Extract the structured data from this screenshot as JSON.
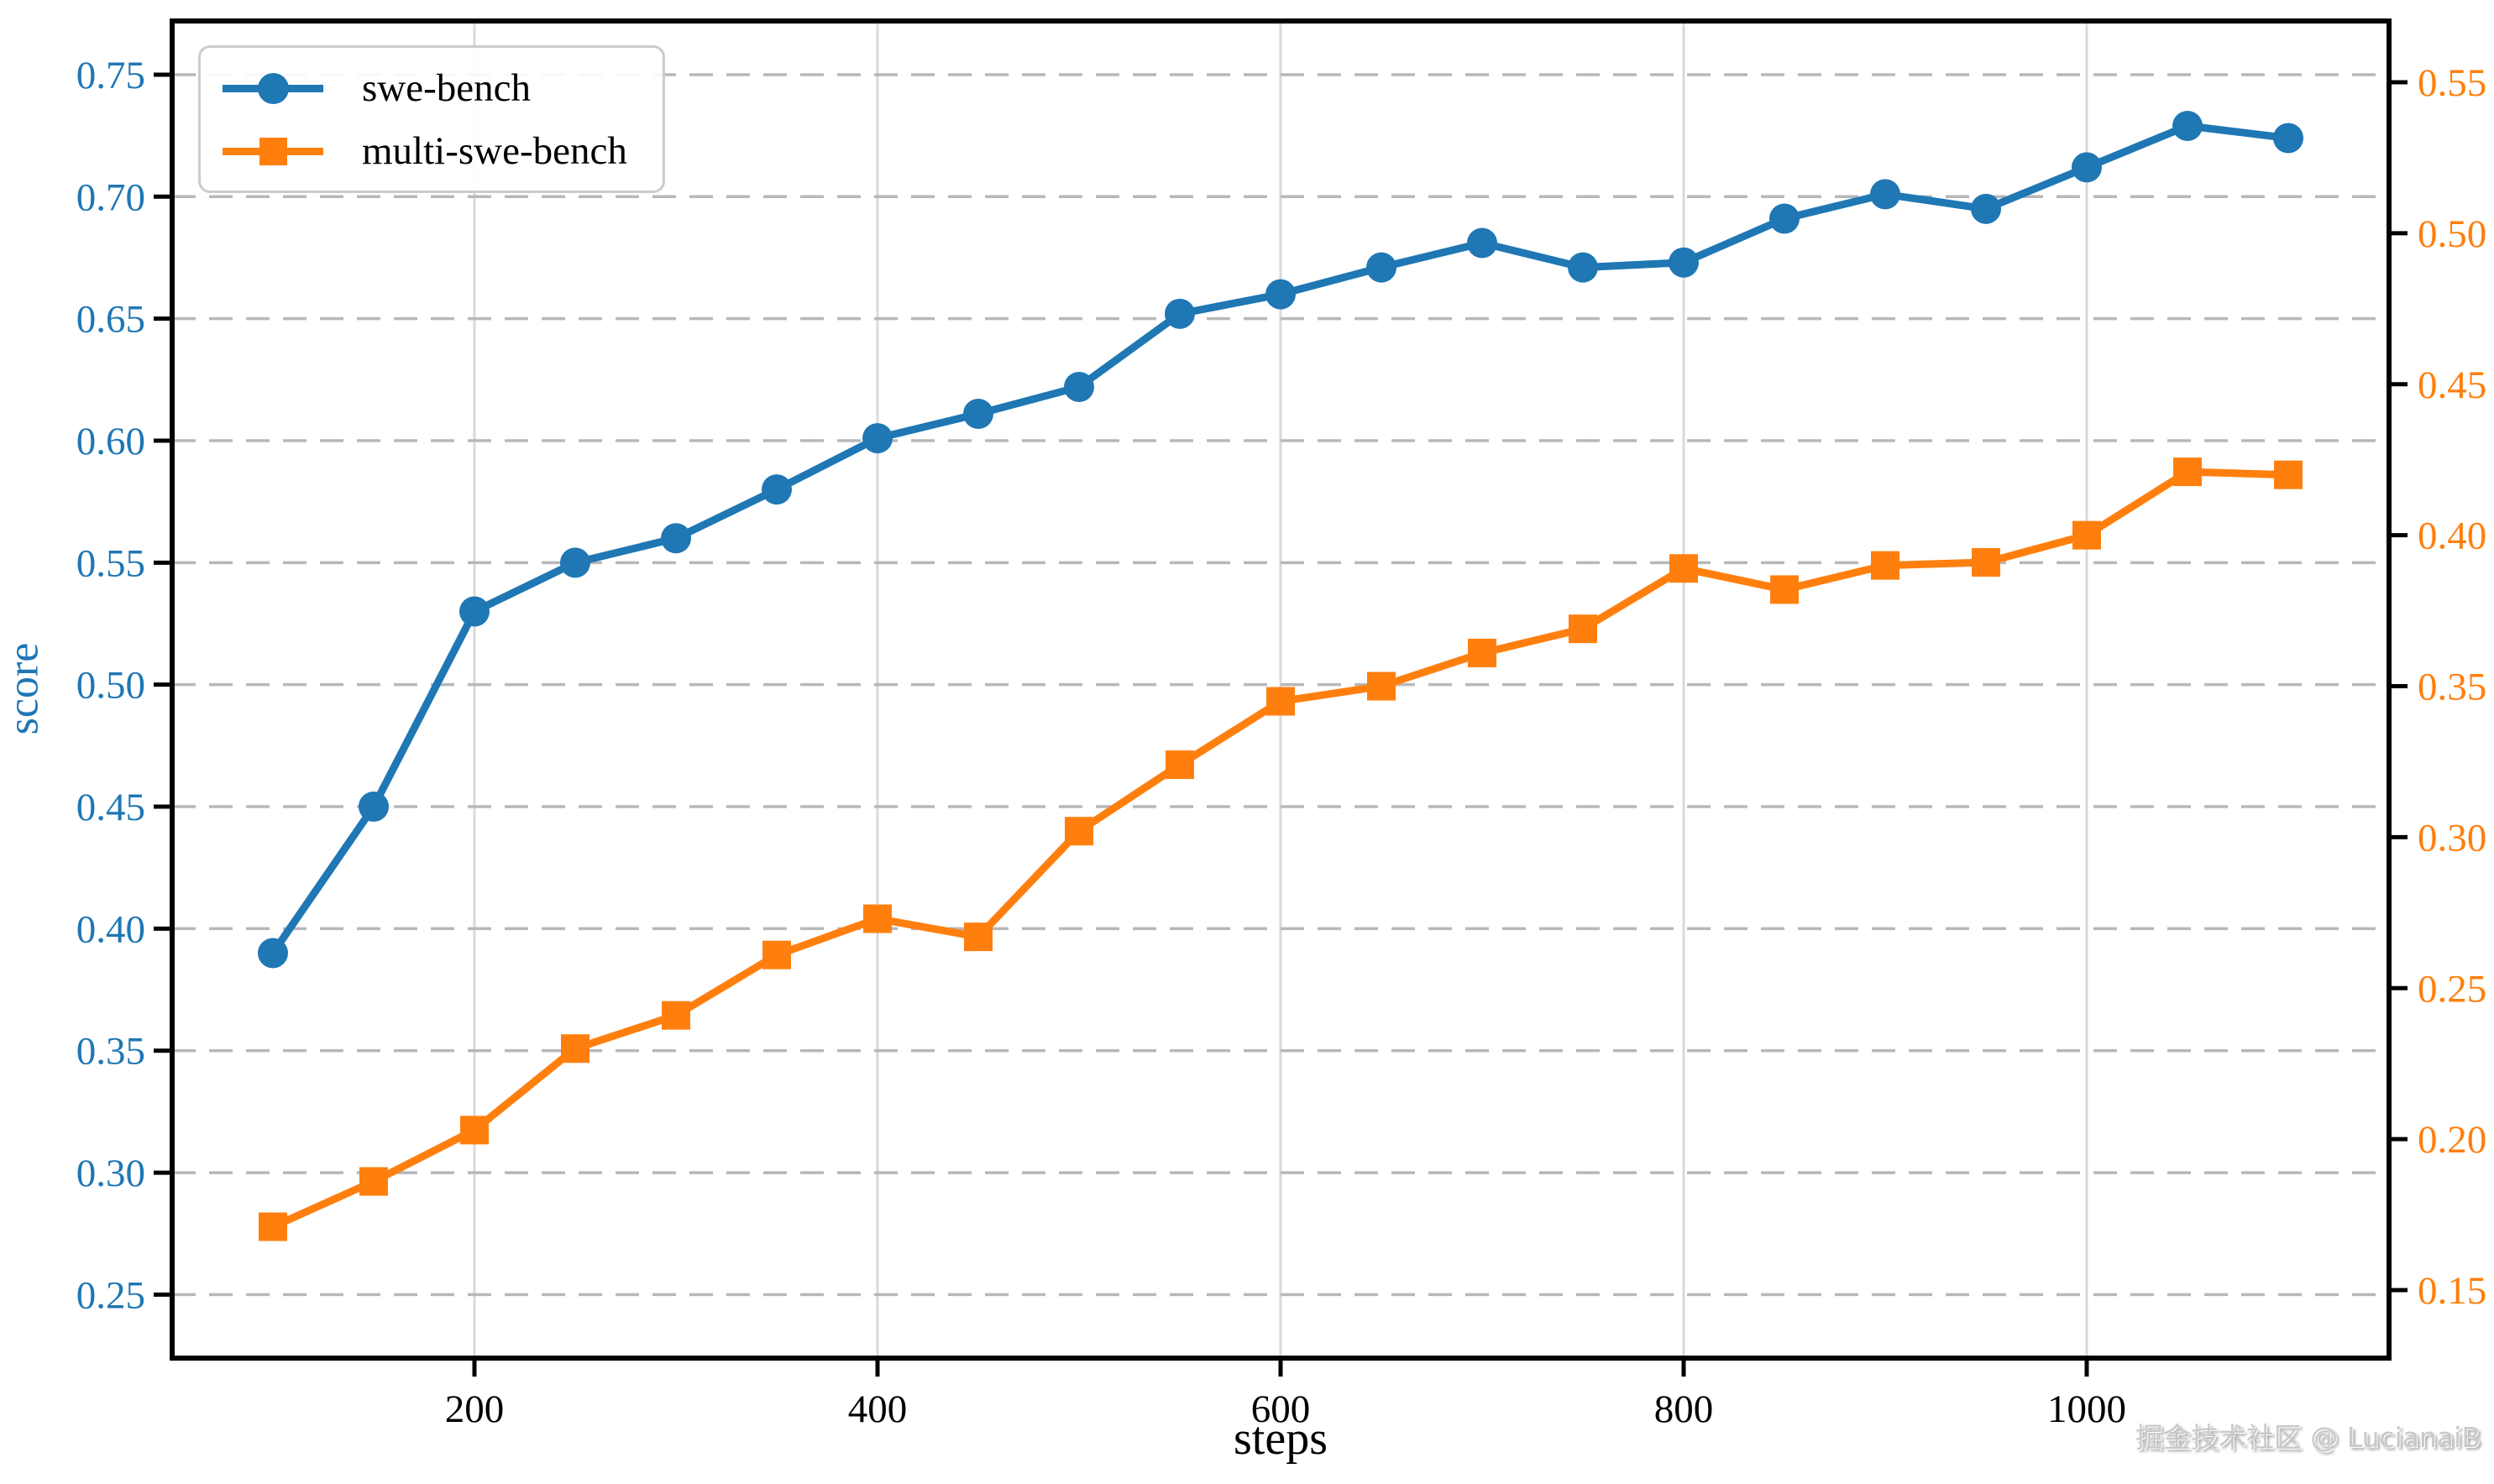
{
  "chart_data": {
    "type": "line",
    "title": "",
    "xlabel": "steps",
    "ylabel_left": "score",
    "x": [
      100,
      150,
      200,
      250,
      300,
      350,
      400,
      450,
      500,
      550,
      600,
      650,
      700,
      750,
      800,
      850,
      900,
      950,
      1000,
      1050,
      1100
    ],
    "series": [
      {
        "name": "swe-bench",
        "axis": "left",
        "color": "#1f77b4",
        "marker": "circle",
        "values": [
          0.39,
          0.45,
          0.53,
          0.55,
          0.56,
          0.58,
          0.601,
          0.611,
          0.622,
          0.652,
          0.66,
          0.671,
          0.681,
          0.671,
          0.673,
          0.691,
          0.701,
          0.695,
          0.712,
          0.729,
          0.724
        ]
      },
      {
        "name": "multi-swe-bench",
        "axis": "right",
        "color": "#ff7f0e",
        "marker": "square",
        "values": [
          0.171,
          0.186,
          0.203,
          0.23,
          0.241,
          0.261,
          0.273,
          0.267,
          0.302,
          0.324,
          0.345,
          0.35,
          0.361,
          0.369,
          0.389,
          0.382,
          0.39,
          0.391,
          0.4,
          0.421,
          0.42
        ]
      }
    ],
    "axes": {
      "x": {
        "ticks": [
          200,
          400,
          600,
          800,
          1000
        ],
        "lim": [
          50,
          1150
        ],
        "tick_color": "#000000"
      },
      "y_left": {
        "ticks": [
          0.25,
          0.3,
          0.35,
          0.4,
          0.45,
          0.5,
          0.55,
          0.6,
          0.65,
          0.7,
          0.75
        ],
        "lim": [
          0.224,
          0.772
        ],
        "tick_color": "#1f77b4"
      },
      "y_right": {
        "ticks": [
          0.15,
          0.2,
          0.25,
          0.3,
          0.35,
          0.4,
          0.45,
          0.5,
          0.55
        ],
        "lim": [
          0.1275,
          0.5703
        ],
        "tick_color": "#ff7f0e"
      }
    },
    "grid": {
      "horizontal": "dashed",
      "vertical": "solid",
      "h_color": "#b8b8b8",
      "v_color": "#d9d9d9"
    },
    "legend": {
      "position": "upper-left"
    }
  },
  "watermark": {
    "text": "掘金技术社区 @ LucianaiB"
  }
}
